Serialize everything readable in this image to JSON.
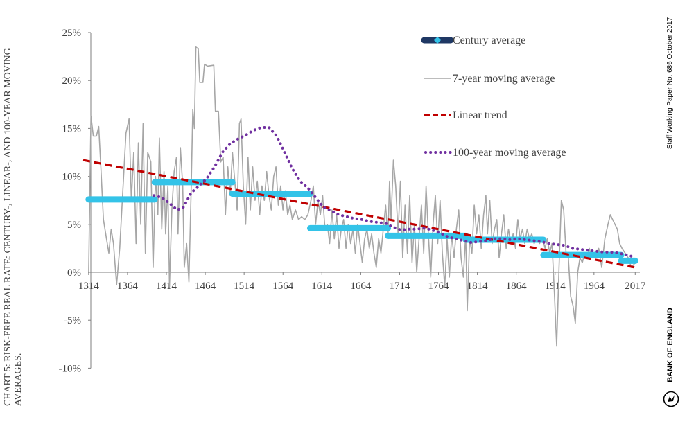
{
  "title": "CHART 5: RISK-FREE REAL RATE: CENTURY-, LINEAR-, AND 100-YEAR MOVING AVERAGES.",
  "footer": "Staff Working Paper No. 686 October 2017",
  "brand": "BANK OF ENGLAND",
  "colors": {
    "century": "#33c3e8",
    "moving7": "#a6a6a6",
    "linear": "#c00000",
    "ma100": "#7030a0",
    "axis": "#7f7f7f"
  },
  "chart_data": {
    "type": "line",
    "x_ticks": [
      "1314",
      "1364",
      "1414",
      "1464",
      "1514",
      "1564",
      "1614",
      "1664",
      "1714",
      "1764",
      "1814",
      "1864",
      "1914",
      "1964",
      "2017"
    ],
    "y_ticks": [
      "-10%",
      "-5%",
      "0%",
      "5%",
      "10%",
      "15%",
      "20%",
      "25%"
    ],
    "xlim": [
      1307,
      2023
    ],
    "ylim": [
      -10,
      25
    ],
    "legend": [
      "Century average",
      "7-year moving average",
      "Linear trend",
      "100-year moving average"
    ],
    "series": [
      {
        "name": "Century average",
        "style": "step",
        "points": [
          [
            1314,
            7.6
          ],
          [
            1399,
            7.6
          ],
          [
            1399,
            9.4
          ],
          [
            1499,
            9.4
          ],
          [
            1499,
            8.2
          ],
          [
            1599,
            8.2
          ],
          [
            1599,
            4.6
          ],
          [
            1699,
            4.6
          ],
          [
            1699,
            3.8
          ],
          [
            1799,
            3.8
          ],
          [
            1799,
            3.4
          ],
          [
            1899,
            3.4
          ],
          [
            1899,
            1.8
          ],
          [
            1999,
            1.8
          ],
          [
            1999,
            1.2
          ],
          [
            2017,
            1.2
          ]
        ]
      },
      {
        "name": "7-year moving average",
        "style": "solid",
        "points": [
          [
            1314,
            0
          ],
          [
            1317,
            16.3
          ],
          [
            1320,
            14.2
          ],
          [
            1324,
            14.2
          ],
          [
            1327,
            15.2
          ],
          [
            1330,
            10.5
          ],
          [
            1333,
            5.5
          ],
          [
            1337,
            3.5
          ],
          [
            1340,
            2.0
          ],
          [
            1343,
            4.5
          ],
          [
            1346,
            3.0
          ],
          [
            1350,
            -1.3
          ],
          [
            1354,
            2.5
          ],
          [
            1358,
            8.5
          ],
          [
            1362,
            14.5
          ],
          [
            1366,
            16.0
          ],
          [
            1369,
            7.5
          ],
          [
            1372,
            12.5
          ],
          [
            1375,
            3.0
          ],
          [
            1378,
            13.5
          ],
          [
            1381,
            5.0
          ],
          [
            1384,
            15.5
          ],
          [
            1387,
            2.0
          ],
          [
            1390,
            12.5
          ],
          [
            1394,
            11.5
          ],
          [
            1397,
            0.5
          ],
          [
            1400,
            10.0
          ],
          [
            1403,
            6.0
          ],
          [
            1405,
            14.0
          ],
          [
            1408,
            4.5
          ],
          [
            1411,
            10.5
          ],
          [
            1413,
            4.0
          ],
          [
            1416,
            9.0
          ],
          [
            1418,
            -1.5
          ],
          [
            1421,
            6.5
          ],
          [
            1424,
            10.5
          ],
          [
            1427,
            12.0
          ],
          [
            1429,
            4.0
          ],
          [
            1432,
            13.0
          ],
          [
            1435,
            9.0
          ],
          [
            1437,
            0.5
          ],
          [
            1440,
            3.0
          ],
          [
            1443,
            -1.0
          ],
          [
            1446,
            9.0
          ],
          [
            1448,
            17.0
          ],
          [
            1450,
            15.0
          ],
          [
            1452,
            23.5
          ],
          [
            1455,
            23.3
          ],
          [
            1457,
            19.8
          ],
          [
            1461,
            19.8
          ],
          [
            1463,
            21.7
          ],
          [
            1467,
            21.5
          ],
          [
            1475,
            21.6
          ],
          [
            1477,
            16.8
          ],
          [
            1481,
            16.8
          ],
          [
            1484,
            11.5
          ],
          [
            1487,
            12.0
          ],
          [
            1490,
            6.0
          ],
          [
            1493,
            11.0
          ],
          [
            1496,
            8.0
          ],
          [
            1499,
            12.5
          ],
          [
            1502,
            9.5
          ],
          [
            1505,
            6.5
          ],
          [
            1508,
            15.5
          ],
          [
            1510,
            16.0
          ],
          [
            1513,
            9.0
          ],
          [
            1516,
            5.0
          ],
          [
            1519,
            12.0
          ],
          [
            1522,
            6.5
          ],
          [
            1525,
            11.0
          ],
          [
            1528,
            7.5
          ],
          [
            1531,
            9.5
          ],
          [
            1534,
            6.0
          ],
          [
            1537,
            9.0
          ],
          [
            1540,
            7.5
          ],
          [
            1543,
            10.5
          ],
          [
            1546,
            8.0
          ],
          [
            1549,
            6.5
          ],
          [
            1552,
            10.0
          ],
          [
            1555,
            11.0
          ],
          [
            1558,
            7.0
          ],
          [
            1561,
            9.0
          ],
          [
            1564,
            6.5
          ],
          [
            1567,
            8.5
          ],
          [
            1570,
            6.0
          ],
          [
            1573,
            7.0
          ],
          [
            1576,
            5.5
          ],
          [
            1580,
            6.5
          ],
          [
            1584,
            5.5
          ],
          [
            1588,
            5.8
          ],
          [
            1592,
            5.5
          ],
          [
            1596,
            6.0
          ],
          [
            1600,
            7.5
          ],
          [
            1603,
            9.0
          ],
          [
            1606,
            5.0
          ],
          [
            1609,
            7.5
          ],
          [
            1612,
            6.0
          ],
          [
            1615,
            8.0
          ],
          [
            1618,
            4.5
          ],
          [
            1621,
            5.0
          ],
          [
            1624,
            3.0
          ],
          [
            1627,
            6.5
          ],
          [
            1630,
            3.5
          ],
          [
            1633,
            6.0
          ],
          [
            1636,
            2.5
          ],
          [
            1639,
            4.5
          ],
          [
            1642,
            5.5
          ],
          [
            1645,
            2.5
          ],
          [
            1648,
            5.0
          ],
          [
            1651,
            3.0
          ],
          [
            1654,
            4.5
          ],
          [
            1657,
            2.0
          ],
          [
            1660,
            5.0
          ],
          [
            1663,
            3.0
          ],
          [
            1666,
            1.0
          ],
          [
            1669,
            3.5
          ],
          [
            1672,
            4.5
          ],
          [
            1675,
            2.5
          ],
          [
            1678,
            4.0
          ],
          [
            1681,
            2.0
          ],
          [
            1684,
            0.5
          ],
          [
            1687,
            3.5
          ],
          [
            1690,
            2.0
          ],
          [
            1693,
            4.5
          ],
          [
            1696,
            7.0
          ],
          [
            1699,
            3.5
          ],
          [
            1701,
            9.5
          ],
          [
            1703,
            5.5
          ],
          [
            1706,
            11.7
          ],
          [
            1709,
            9.0
          ],
          [
            1712,
            4.0
          ],
          [
            1715,
            9.5
          ],
          [
            1718,
            1.5
          ],
          [
            1721,
            7.0
          ],
          [
            1724,
            2.0
          ],
          [
            1727,
            8.0
          ],
          [
            1730,
            1.0
          ],
          [
            1733,
            5.0
          ],
          [
            1736,
            0.0
          ],
          [
            1739,
            3.5
          ],
          [
            1742,
            7.0
          ],
          [
            1745,
            2.0
          ],
          [
            1748,
            9.0
          ],
          [
            1751,
            4.0
          ],
          [
            1754,
            -0.5
          ],
          [
            1757,
            5.0
          ],
          [
            1760,
            8.0
          ],
          [
            1763,
            3.0
          ],
          [
            1766,
            7.5
          ],
          [
            1769,
            2.0
          ],
          [
            1772,
            -1.5
          ],
          [
            1775,
            3.5
          ],
          [
            1778,
            -0.5
          ],
          [
            1781,
            4.0
          ],
          [
            1784,
            1.5
          ],
          [
            1787,
            4.5
          ],
          [
            1790,
            6.5
          ],
          [
            1793,
            1.5
          ],
          [
            1796,
            -0.5
          ],
          [
            1799,
            4.0
          ],
          [
            1801,
            -4.0
          ],
          [
            1804,
            3.5
          ],
          [
            1807,
            2.0
          ],
          [
            1810,
            7.0
          ],
          [
            1813,
            4.0
          ],
          [
            1816,
            6.0
          ],
          [
            1819,
            2.5
          ],
          [
            1822,
            6.0
          ],
          [
            1825,
            8.0
          ],
          [
            1827,
            4.0
          ],
          [
            1830,
            7.5
          ],
          [
            1833,
            3.0
          ],
          [
            1836,
            4.5
          ],
          [
            1839,
            5.5
          ],
          [
            1842,
            1.5
          ],
          [
            1845,
            4.0
          ],
          [
            1848,
            6.0
          ],
          [
            1851,
            2.5
          ],
          [
            1854,
            4.5
          ],
          [
            1857,
            3.0
          ],
          [
            1860,
            4.0
          ],
          [
            1863,
            2.5
          ],
          [
            1866,
            5.5
          ],
          [
            1869,
            3.5
          ],
          [
            1872,
            4.5
          ],
          [
            1875,
            3.0
          ],
          [
            1878,
            4.5
          ],
          [
            1881,
            3.5
          ],
          [
            1884,
            4.0
          ],
          [
            1887,
            3.0
          ],
          [
            1890,
            3.5
          ],
          [
            1894,
            3.0
          ],
          [
            1898,
            3.5
          ],
          [
            1901,
            2.5
          ],
          [
            1904,
            3.5
          ],
          [
            1907,
            2.0
          ],
          [
            1910,
            3.0
          ],
          [
            1913,
            -2.0
          ],
          [
            1916,
            -7.7
          ],
          [
            1919,
            0.5
          ],
          [
            1922,
            7.5
          ],
          [
            1925,
            6.5
          ],
          [
            1928,
            2.0
          ],
          [
            1931,
            1.5
          ],
          [
            1934,
            -2.5
          ],
          [
            1937,
            -3.5
          ],
          [
            1940,
            -5.3
          ],
          [
            1943,
            0.0
          ],
          [
            1946,
            1.5
          ],
          [
            1949,
            1.0
          ],
          [
            1952,
            2.0
          ],
          [
            1955,
            1.5
          ],
          [
            1958,
            2.5
          ],
          [
            1961,
            1.5
          ],
          [
            1964,
            2.0
          ],
          [
            1967,
            1.5
          ],
          [
            1970,
            2.5
          ],
          [
            1974,
            0.5
          ],
          [
            1978,
            3.5
          ],
          [
            1982,
            5.0
          ],
          [
            1985,
            6.0
          ],
          [
            1988,
            5.5
          ],
          [
            1991,
            5.0
          ],
          [
            1994,
            4.5
          ],
          [
            1997,
            3.0
          ],
          [
            2000,
            2.5
          ],
          [
            2004,
            2.0
          ],
          [
            2008,
            1.5
          ],
          [
            2012,
            0.5
          ],
          [
            2017,
            1.0
          ]
        ]
      },
      {
        "name": "Linear trend",
        "style": "dashed",
        "points": [
          [
            1307,
            11.7
          ],
          [
            2017,
            0.5
          ]
        ]
      },
      {
        "name": "100-year moving average",
        "style": "dotted",
        "points": [
          [
            1398,
            8.0
          ],
          [
            1408,
            7.8
          ],
          [
            1418,
            7.2
          ],
          [
            1428,
            6.5
          ],
          [
            1436,
            6.8
          ],
          [
            1446,
            8.3
          ],
          [
            1456,
            9.0
          ],
          [
            1466,
            9.8
          ],
          [
            1476,
            11.0
          ],
          [
            1486,
            12.5
          ],
          [
            1496,
            13.4
          ],
          [
            1506,
            13.9
          ],
          [
            1516,
            14.3
          ],
          [
            1526,
            14.8
          ],
          [
            1536,
            15.1
          ],
          [
            1546,
            15.1
          ],
          [
            1556,
            14.2
          ],
          [
            1566,
            12.5
          ],
          [
            1576,
            10.8
          ],
          [
            1586,
            9.5
          ],
          [
            1596,
            8.8
          ],
          [
            1606,
            7.8
          ],
          [
            1616,
            6.8
          ],
          [
            1626,
            6.4
          ],
          [
            1636,
            6.0
          ],
          [
            1646,
            5.8
          ],
          [
            1656,
            5.6
          ],
          [
            1666,
            5.5
          ],
          [
            1676,
            5.3
          ],
          [
            1686,
            5.2
          ],
          [
            1696,
            5.1
          ],
          [
            1706,
            4.7
          ],
          [
            1716,
            4.4
          ],
          [
            1726,
            4.5
          ],
          [
            1736,
            4.5
          ],
          [
            1746,
            4.6
          ],
          [
            1756,
            4.4
          ],
          [
            1766,
            4.1
          ],
          [
            1776,
            3.7
          ],
          [
            1786,
            3.5
          ],
          [
            1796,
            3.3
          ],
          [
            1806,
            3.1
          ],
          [
            1816,
            3.2
          ],
          [
            1826,
            3.3
          ],
          [
            1836,
            3.5
          ],
          [
            1846,
            3.5
          ],
          [
            1856,
            3.4
          ],
          [
            1866,
            3.5
          ],
          [
            1876,
            3.4
          ],
          [
            1886,
            3.3
          ],
          [
            1896,
            3.2
          ],
          [
            1906,
            3.0
          ],
          [
            1916,
            2.9
          ],
          [
            1926,
            2.8
          ],
          [
            1936,
            2.5
          ],
          [
            1946,
            2.4
          ],
          [
            1956,
            2.3
          ],
          [
            1966,
            2.2
          ],
          [
            1976,
            2.1
          ],
          [
            1986,
            2.1
          ],
          [
            1996,
            2.0
          ],
          [
            2006,
            1.8
          ],
          [
            2016,
            1.6
          ]
        ]
      }
    ]
  }
}
